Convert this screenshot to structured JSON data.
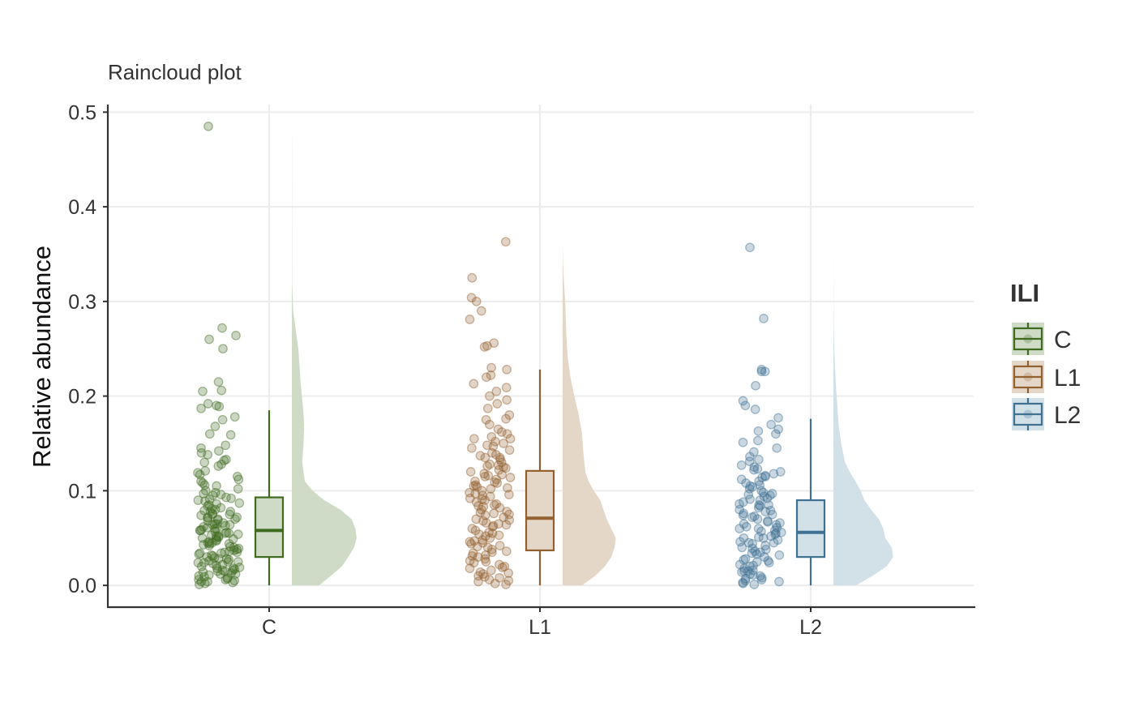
{
  "chart_data": {
    "type": "raincloud",
    "title": "Raincloud plot",
    "ylabel": "Relative abundance",
    "xlabel": "",
    "ylim": [
      -0.023,
      0.508
    ],
    "y_ticks": [
      0.0,
      0.1,
      0.2,
      0.3,
      0.4,
      0.5
    ],
    "y_tick_labels": [
      "0.0",
      "0.1",
      "0.2",
      "0.3",
      "0.4",
      "0.5"
    ],
    "categories": [
      "C",
      "L1",
      "L2"
    ],
    "grid": true,
    "legend": {
      "title": "ILI",
      "position": "right",
      "entries": [
        "C",
        "L1",
        "L2"
      ]
    },
    "groups": [
      {
        "name": "C",
        "color": "#3f6b1f",
        "fill": "#cfdbc6",
        "box": {
          "min": 0.0,
          "q1": 0.03,
          "median": 0.058,
          "q3": 0.093,
          "max": 0.185
        },
        "density": [
          [
            0.0,
            0.42
          ],
          [
            0.01,
            0.6
          ],
          [
            0.02,
            0.77
          ],
          [
            0.03,
            0.87
          ],
          [
            0.04,
            0.96
          ],
          [
            0.05,
            1.0
          ],
          [
            0.06,
            0.98
          ],
          [
            0.07,
            0.92
          ],
          [
            0.08,
            0.75
          ],
          [
            0.09,
            0.5
          ],
          [
            0.1,
            0.32
          ],
          [
            0.11,
            0.2
          ],
          [
            0.13,
            0.16
          ],
          [
            0.15,
            0.18
          ],
          [
            0.17,
            0.19
          ],
          [
            0.19,
            0.17
          ],
          [
            0.21,
            0.14
          ],
          [
            0.23,
            0.12
          ],
          [
            0.25,
            0.1
          ],
          [
            0.27,
            0.06
          ],
          [
            0.29,
            0.02
          ],
          [
            0.32,
            0.004
          ],
          [
            0.45,
            0.002
          ],
          [
            0.486,
            0.0
          ]
        ],
        "outliers": [
          0.485,
          0.272,
          0.264,
          0.26,
          0.25
        ],
        "points": [
          0.215,
          0.206,
          0.205,
          0.192,
          0.19,
          0.189,
          0.187,
          0.178,
          0.175,
          0.168,
          0.16,
          0.159,
          0.148,
          0.145,
          0.142,
          0.138,
          0.133,
          0.13,
          0.128,
          0.126,
          0.121,
          0.117,
          0.115,
          0.112,
          0.108,
          0.105,
          0.102,
          0.1,
          0.098,
          0.096,
          0.093,
          0.091,
          0.089,
          0.087,
          0.086,
          0.084,
          0.082,
          0.081,
          0.079,
          0.078,
          0.076,
          0.075,
          0.074,
          0.072,
          0.071,
          0.07,
          0.069,
          0.068,
          0.066,
          0.065,
          0.064,
          0.063,
          0.062,
          0.061,
          0.06,
          0.059,
          0.058,
          0.057,
          0.056,
          0.055,
          0.054,
          0.053,
          0.052,
          0.051,
          0.05,
          0.049,
          0.048,
          0.047,
          0.046,
          0.045,
          0.044,
          0.043,
          0.042,
          0.041,
          0.04,
          0.039,
          0.038,
          0.037,
          0.036,
          0.035,
          0.034,
          0.033,
          0.032,
          0.031,
          0.03,
          0.029,
          0.028,
          0.027,
          0.026,
          0.025,
          0.024,
          0.023,
          0.022,
          0.021,
          0.02,
          0.019,
          0.018,
          0.017,
          0.016,
          0.015,
          0.014,
          0.013,
          0.012,
          0.011,
          0.01,
          0.009,
          0.008,
          0.007,
          0.006,
          0.005,
          0.004,
          0.003,
          0.002,
          0.001,
          0.004,
          0.006,
          0.012,
          0.016,
          0.018,
          0.024,
          0.028,
          0.034,
          0.044,
          0.052,
          0.058,
          0.064,
          0.072,
          0.078,
          0.092,
          0.097,
          0.106,
          0.119,
          0.132,
          0.14,
          0.06,
          0.05,
          0.07,
          0.08,
          0.09,
          0.075,
          0.065,
          0.055,
          0.045,
          0.035,
          0.025,
          0.015,
          0.085,
          0.095,
          0.11
        ]
      },
      {
        "name": "L1",
        "color": "#93602f",
        "fill": "#e4d7c8",
        "box": {
          "min": 0.0,
          "q1": 0.037,
          "median": 0.071,
          "q3": 0.121,
          "max": 0.228
        },
        "density": [
          [
            0.0,
            0.3
          ],
          [
            0.01,
            0.5
          ],
          [
            0.02,
            0.65
          ],
          [
            0.03,
            0.75
          ],
          [
            0.04,
            0.8
          ],
          [
            0.05,
            0.82
          ],
          [
            0.06,
            0.75
          ],
          [
            0.07,
            0.68
          ],
          [
            0.08,
            0.63
          ],
          [
            0.09,
            0.58
          ],
          [
            0.1,
            0.48
          ],
          [
            0.11,
            0.4
          ],
          [
            0.12,
            0.35
          ],
          [
            0.14,
            0.32
          ],
          [
            0.16,
            0.3
          ],
          [
            0.18,
            0.25
          ],
          [
            0.2,
            0.18
          ],
          [
            0.22,
            0.12
          ],
          [
            0.24,
            0.08
          ],
          [
            0.26,
            0.06
          ],
          [
            0.28,
            0.05
          ],
          [
            0.3,
            0.04
          ],
          [
            0.32,
            0.02
          ],
          [
            0.34,
            0.005
          ],
          [
            0.364,
            0.0
          ]
        ],
        "outliers": [],
        "points": [
          0.363,
          0.325,
          0.304,
          0.3,
          0.29,
          0.281,
          0.256,
          0.253,
          0.252,
          0.23,
          0.228,
          0.222,
          0.22,
          0.213,
          0.209,
          0.205,
          0.2,
          0.196,
          0.192,
          0.187,
          0.18,
          0.176,
          0.175,
          0.17,
          0.165,
          0.162,
          0.16,
          0.157,
          0.155,
          0.152,
          0.15,
          0.148,
          0.145,
          0.143,
          0.14,
          0.138,
          0.135,
          0.133,
          0.13,
          0.128,
          0.126,
          0.124,
          0.122,
          0.12,
          0.118,
          0.116,
          0.114,
          0.112,
          0.11,
          0.108,
          0.106,
          0.104,
          0.102,
          0.1,
          0.098,
          0.096,
          0.094,
          0.092,
          0.09,
          0.088,
          0.086,
          0.084,
          0.082,
          0.08,
          0.078,
          0.076,
          0.074,
          0.072,
          0.07,
          0.068,
          0.066,
          0.064,
          0.062,
          0.06,
          0.058,
          0.056,
          0.054,
          0.052,
          0.05,
          0.048,
          0.046,
          0.044,
          0.042,
          0.04,
          0.038,
          0.036,
          0.034,
          0.032,
          0.03,
          0.028,
          0.026,
          0.024,
          0.022,
          0.02,
          0.018,
          0.016,
          0.014,
          0.012,
          0.01,
          0.008,
          0.006,
          0.004,
          0.002,
          0.001,
          0.005,
          0.009,
          0.013,
          0.019,
          0.025,
          0.031,
          0.041,
          0.047,
          0.053,
          0.063,
          0.069,
          0.077,
          0.083,
          0.091,
          0.097,
          0.103,
          0.109,
          0.117,
          0.127,
          0.137,
          0.147,
          0.155,
          0.065,
          0.075,
          0.085,
          0.095,
          0.045,
          0.035,
          0.055,
          0.105,
          0.115,
          0.125,
          0.135
        ]
      },
      {
        "name": "L2",
        "color": "#3f7192",
        "fill": "#d2e0e8",
        "box": {
          "min": 0.0,
          "q1": 0.03,
          "median": 0.056,
          "q3": 0.09,
          "max": 0.176
        },
        "density": [
          [
            0.0,
            0.35
          ],
          [
            0.01,
            0.6
          ],
          [
            0.02,
            0.82
          ],
          [
            0.03,
            0.92
          ],
          [
            0.04,
            0.9
          ],
          [
            0.05,
            0.8
          ],
          [
            0.06,
            0.77
          ],
          [
            0.07,
            0.7
          ],
          [
            0.08,
            0.58
          ],
          [
            0.09,
            0.48
          ],
          [
            0.1,
            0.42
          ],
          [
            0.11,
            0.34
          ],
          [
            0.12,
            0.25
          ],
          [
            0.13,
            0.18
          ],
          [
            0.15,
            0.12
          ],
          [
            0.17,
            0.08
          ],
          [
            0.19,
            0.06
          ],
          [
            0.21,
            0.04
          ],
          [
            0.23,
            0.025
          ],
          [
            0.25,
            0.012
          ],
          [
            0.28,
            0.004
          ],
          [
            0.358,
            0.0
          ]
        ],
        "outliers": [
          0.357,
          0.282
        ],
        "points": [
          0.228,
          0.226,
          0.226,
          0.211,
          0.195,
          0.19,
          0.186,
          0.177,
          0.17,
          0.165,
          0.163,
          0.16,
          0.153,
          0.151,
          0.145,
          0.141,
          0.136,
          0.131,
          0.127,
          0.125,
          0.122,
          0.12,
          0.118,
          0.116,
          0.114,
          0.112,
          0.11,
          0.108,
          0.106,
          0.104,
          0.102,
          0.1,
          0.098,
          0.096,
          0.094,
          0.092,
          0.09,
          0.088,
          0.086,
          0.084,
          0.082,
          0.08,
          0.078,
          0.076,
          0.074,
          0.072,
          0.07,
          0.068,
          0.066,
          0.064,
          0.062,
          0.06,
          0.058,
          0.056,
          0.054,
          0.052,
          0.05,
          0.048,
          0.046,
          0.044,
          0.042,
          0.04,
          0.038,
          0.036,
          0.034,
          0.032,
          0.03,
          0.028,
          0.026,
          0.024,
          0.022,
          0.02,
          0.018,
          0.016,
          0.014,
          0.012,
          0.01,
          0.008,
          0.006,
          0.004,
          0.002,
          0.001,
          0.003,
          0.005,
          0.007,
          0.011,
          0.015,
          0.021,
          0.027,
          0.033,
          0.039,
          0.045,
          0.051,
          0.057,
          0.061,
          0.067,
          0.073,
          0.079,
          0.085,
          0.091,
          0.097,
          0.105,
          0.115,
          0.123,
          0.133,
          0.055,
          0.065,
          0.035,
          0.025,
          0.045,
          0.075,
          0.085,
          0.015,
          0.095,
          0.05,
          0.06
        ]
      }
    ]
  }
}
